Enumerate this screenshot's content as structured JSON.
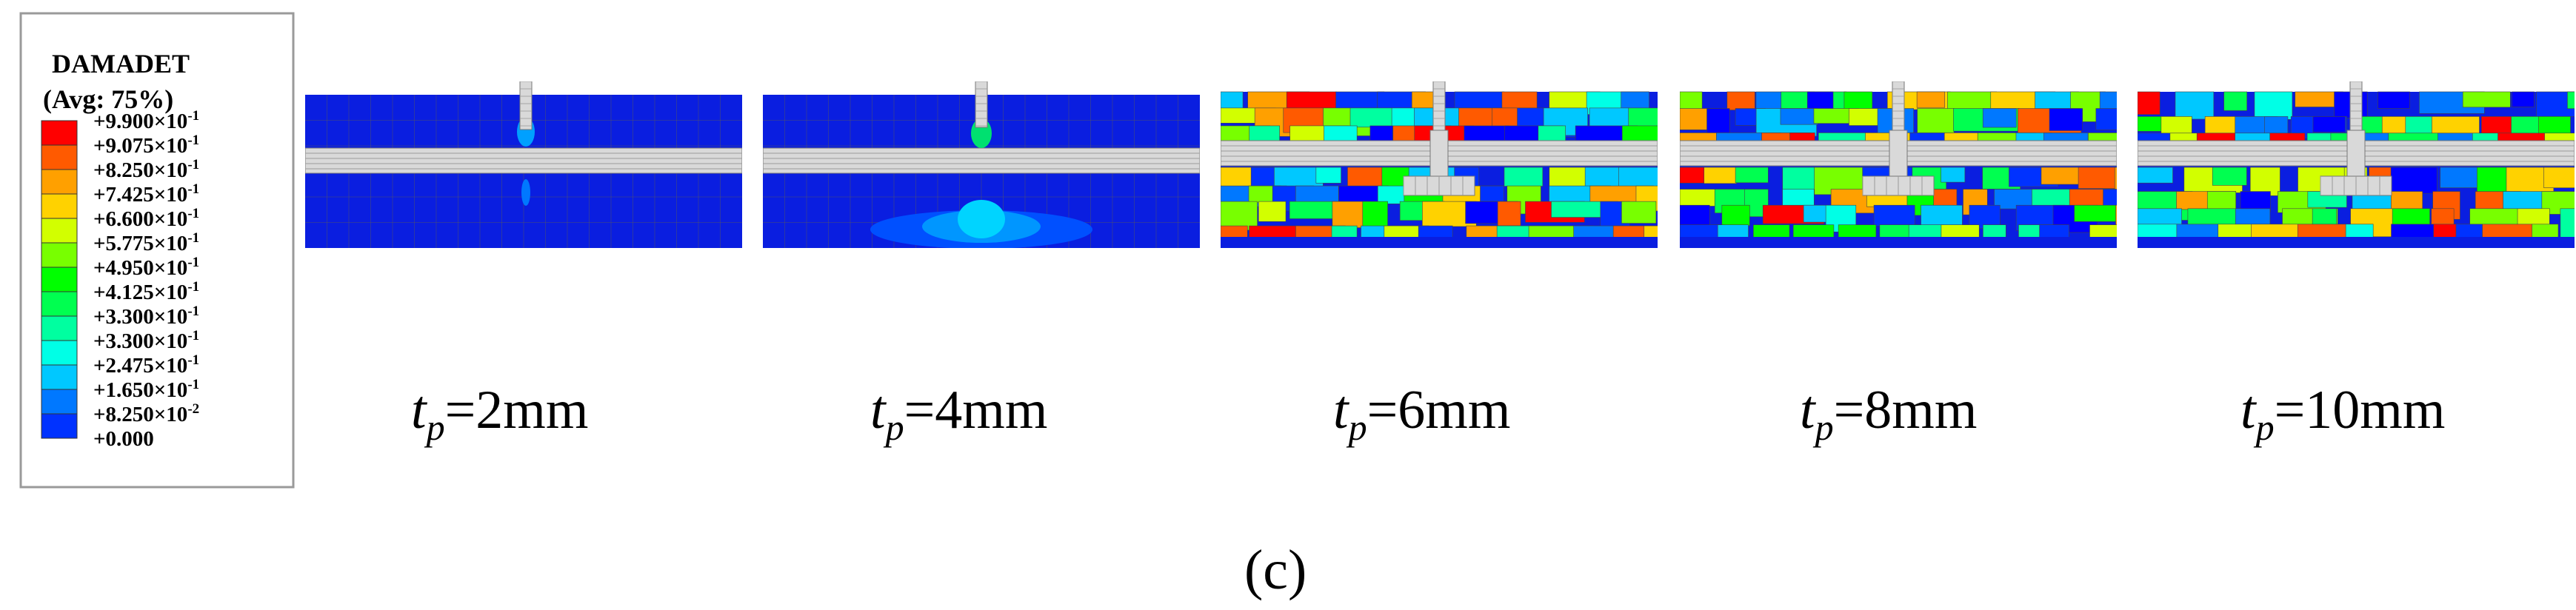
{
  "legend": {
    "title": "DAMADET",
    "subtitle": "(Avg: 75%)",
    "entries": [
      {
        "label": "+9.900×10",
        "exp": "-1",
        "color": "#ff0000"
      },
      {
        "label": "+9.075×10",
        "exp": "-1",
        "color": "#ff5a00"
      },
      {
        "label": "+8.250×10",
        "exp": "-1",
        "color": "#ffa000"
      },
      {
        "label": "+7.425×10",
        "exp": "-1",
        "color": "#ffd200"
      },
      {
        "label": "+6.600×10",
        "exp": "-1",
        "color": "#d2ff00"
      },
      {
        "label": "+5.775×10",
        "exp": "-1",
        "color": "#78ff00"
      },
      {
        "label": "+4.950×10",
        "exp": "-1",
        "color": "#00ff00"
      },
      {
        "label": "+4.125×10",
        "exp": "-1",
        "color": "#00ff50"
      },
      {
        "label": "+3.300×10",
        "exp": "-1",
        "color": "#00ffa0"
      },
      {
        "label": "+3.300×10",
        "exp": "-1",
        "color": "#00ffe6"
      },
      {
        "label": "+2.475×10",
        "exp": "-1",
        "color": "#00c8ff"
      },
      {
        "label": "+1.650×10",
        "exp": "-1",
        "color": "#0078ff"
      },
      {
        "label": "+8.250×10",
        "exp": "-2",
        "color": "#0032ff"
      },
      {
        "label": "+0.000",
        "exp": "",
        "color": "#0000ff"
      }
    ]
  },
  "panels": [
    {
      "label_main": "t",
      "label_sub": "p",
      "label_value": "=2mm"
    },
    {
      "label_main": "t",
      "label_sub": "p",
      "label_value": "=4mm"
    },
    {
      "label_main": "t",
      "label_sub": "p",
      "label_value": "=6mm"
    },
    {
      "label_main": "t",
      "label_sub": "p",
      "label_value": "=8mm"
    },
    {
      "label_main": "t",
      "label_sub": "p",
      "label_value": "=10mm"
    }
  ],
  "caption": "(c)",
  "colors": {
    "background_blue": "#0a1ee0",
    "plate_gray": "#d9d9d9",
    "mesh_line": "#5a5a5a"
  }
}
